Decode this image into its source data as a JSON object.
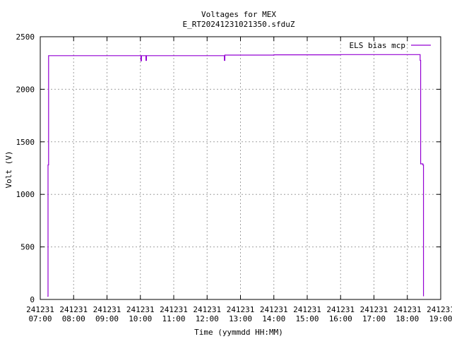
{
  "chart_data": {
    "type": "line",
    "title": "Voltages for MEX",
    "subtitle": "E_RT20241231021350.sfduZ",
    "xlabel": "Time (yymmdd HH:MM)",
    "ylabel": "Volt (V)",
    "xlim": [
      "2024-12-31 07:00",
      "2024-12-31 19:00"
    ],
    "ylim": [
      0,
      2500
    ],
    "grid": true,
    "legend_position": "top-right",
    "yticks": [
      "0",
      "500",
      "1000",
      "1500",
      "2000",
      "2500"
    ],
    "xticks": [
      {
        "date": "241231",
        "time": "07:00"
      },
      {
        "date": "241231",
        "time": "08:00"
      },
      {
        "date": "241231",
        "time": "09:00"
      },
      {
        "date": "241231",
        "time": "10:00"
      },
      {
        "date": "241231",
        "time": "11:00"
      },
      {
        "date": "241231",
        "time": "12:00"
      },
      {
        "date": "241231",
        "time": "13:00"
      },
      {
        "date": "241231",
        "time": "14:00"
      },
      {
        "date": "241231",
        "time": "15:00"
      },
      {
        "date": "241231",
        "time": "16:00"
      },
      {
        "date": "241231",
        "time": "17:00"
      },
      {
        "date": "241231",
        "time": "18:00"
      },
      {
        "date": "241231",
        "time": "19:00"
      }
    ],
    "series": [
      {
        "name": "ELS bias mcp",
        "color": "#9400d3",
        "points": [
          [
            "2024-12-31 07:13",
            30
          ],
          [
            "2024-12-31 07:14",
            1280
          ],
          [
            "2024-12-31 07:15",
            2320
          ],
          [
            "2024-12-31 10:00",
            2320
          ],
          [
            "2024-12-31 10:01",
            2270
          ],
          [
            "2024-12-31 10:02",
            2320
          ],
          [
            "2024-12-31 10:09",
            2320
          ],
          [
            "2024-12-31 10:10",
            2275
          ],
          [
            "2024-12-31 10:11",
            2320
          ],
          [
            "2024-12-31 12:30",
            2320
          ],
          [
            "2024-12-31 12:31",
            2275
          ],
          [
            "2024-12-31 12:32",
            2325
          ],
          [
            "2024-12-31 14:00",
            2328
          ],
          [
            "2024-12-31 16:00",
            2330
          ],
          [
            "2024-12-31 18:22",
            2330
          ],
          [
            "2024-12-31 18:23",
            2275
          ],
          [
            "2024-12-31 18:24",
            1290
          ],
          [
            "2024-12-31 18:28",
            1280
          ],
          [
            "2024-12-31 18:29",
            30
          ]
        ]
      }
    ]
  }
}
